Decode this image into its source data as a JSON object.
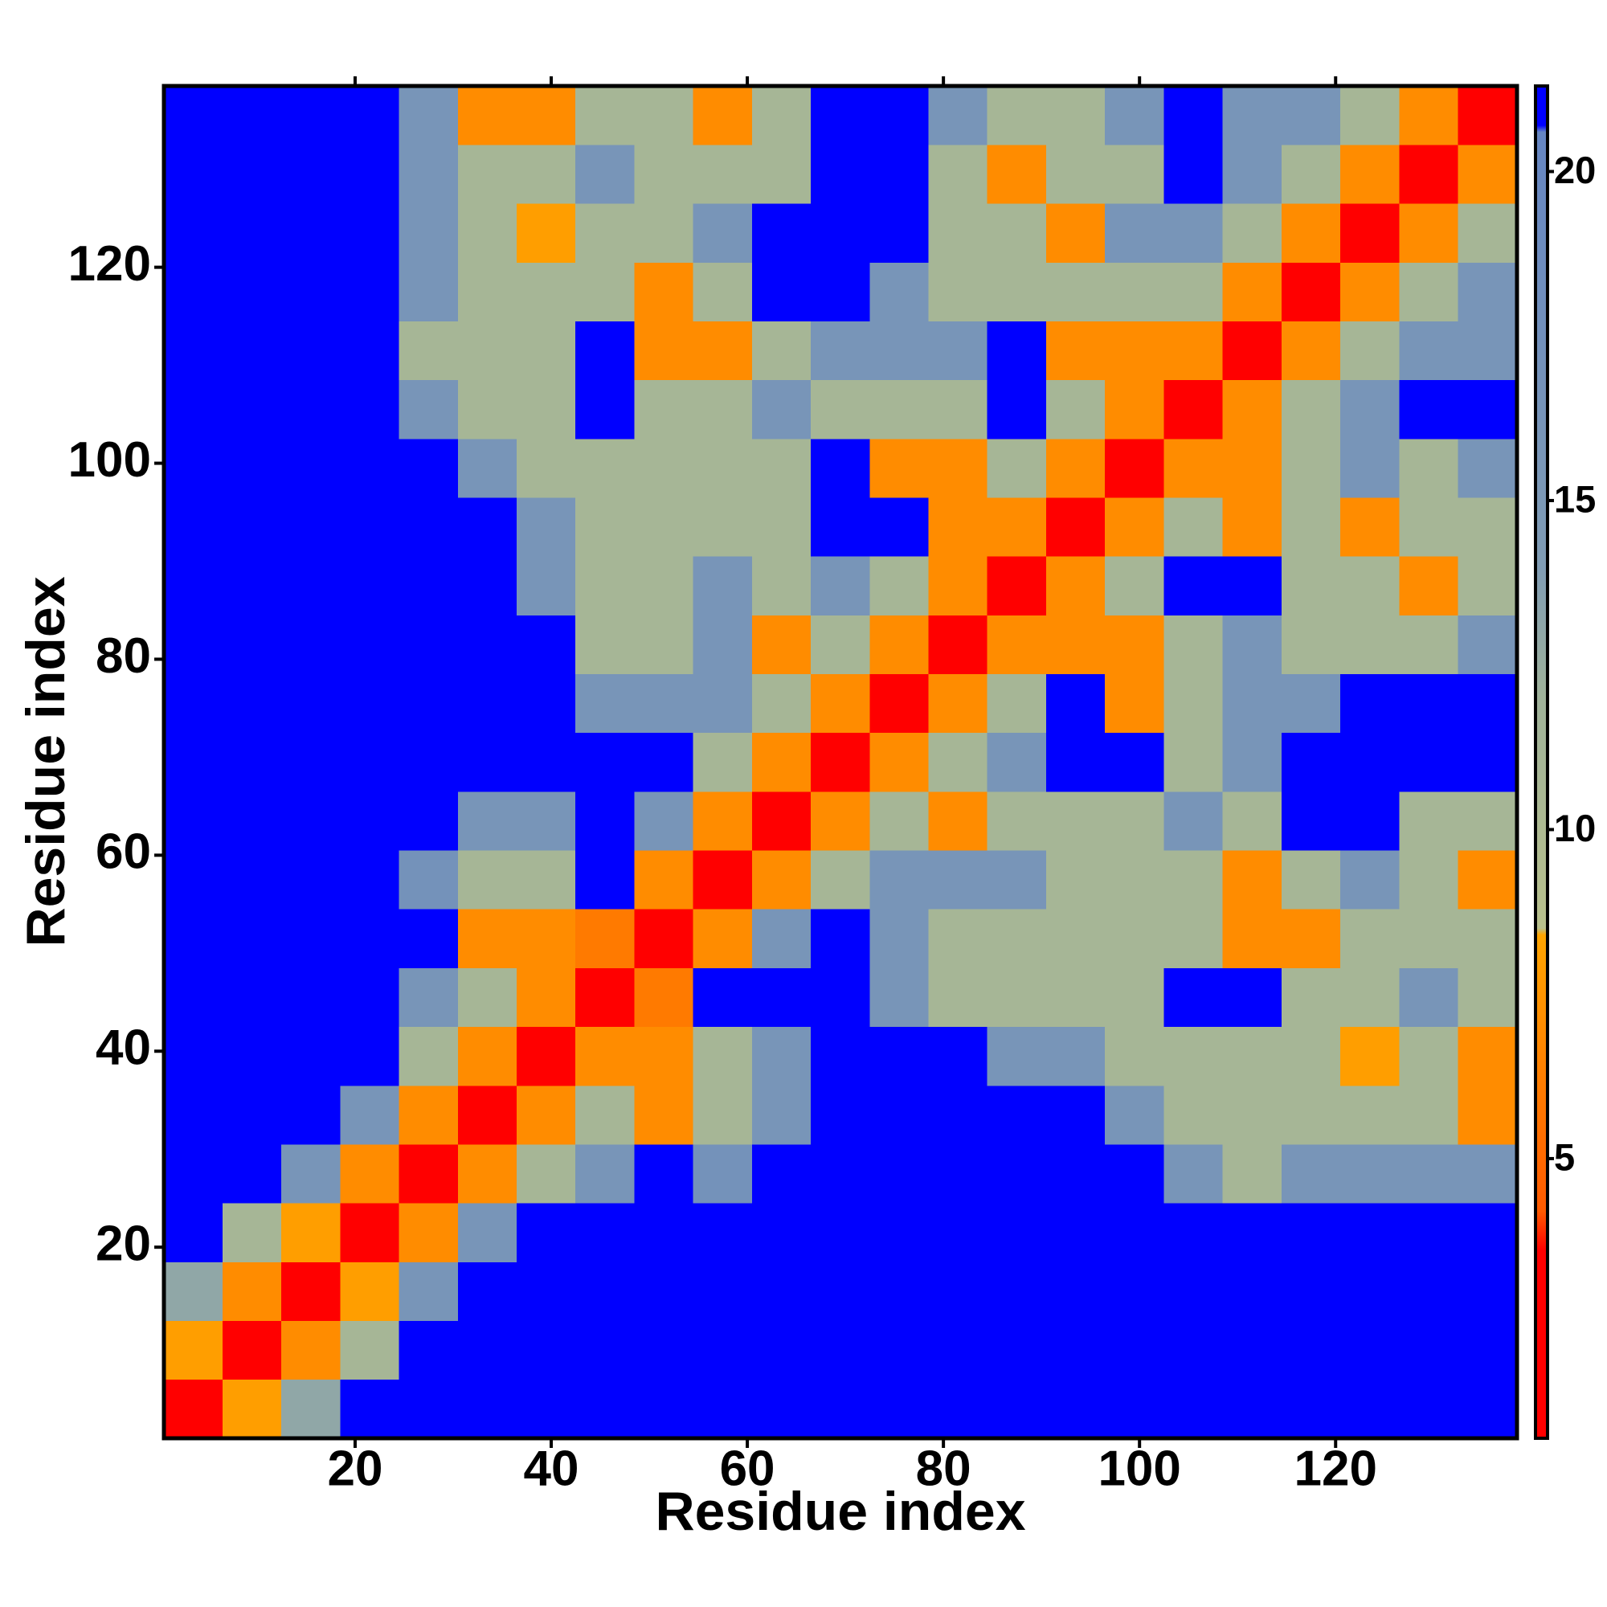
{
  "chart_data": {
    "type": "heatmap",
    "xlabel": "Residue index",
    "ylabel": "Residue index",
    "xlim": [
      0.5,
      138.5
    ],
    "ylim": [
      0.5,
      138.5
    ],
    "xticks": [
      20,
      40,
      60,
      80,
      100,
      120
    ],
    "yticks": [
      20,
      40,
      60,
      80,
      100,
      120
    ],
    "bins": [
      0.5,
      6.5,
      12.5,
      18.5,
      24.5,
      30.5,
      36.5,
      42.5,
      48.5,
      54.5,
      60.5,
      66.5,
      72.5,
      78.5,
      84.5,
      90.5,
      96.5,
      102.5,
      108.5,
      114.5,
      120.5,
      126.5,
      132.5,
      138.5
    ],
    "symmetric": true,
    "z": [
      [
        3,
        8,
        13,
        21,
        21,
        21,
        21,
        21,
        21,
        21,
        21,
        21,
        21,
        21,
        21,
        21,
        21,
        21,
        21,
        21,
        21,
        21,
        21
      ],
      [
        3,
        7,
        11,
        21,
        21,
        21,
        21,
        21,
        21,
        21,
        21,
        21,
        21,
        21,
        21,
        21,
        21,
        21,
        21,
        21,
        21,
        21
      ],
      [
        3,
        8,
        16,
        21,
        21,
        21,
        21,
        21,
        21,
        21,
        21,
        21,
        21,
        21,
        21,
        21,
        21,
        21,
        21,
        21,
        21
      ],
      [
        3,
        7,
        16,
        21,
        21,
        21,
        21,
        21,
        21,
        21,
        21,
        21,
        21,
        21,
        21,
        21,
        21,
        21,
        21,
        21
      ],
      [
        3,
        7,
        11,
        16,
        21,
        17,
        21,
        21,
        21,
        21,
        21,
        21,
        21,
        16,
        11,
        16,
        16,
        16,
        16
      ],
      [
        3,
        7,
        11,
        7,
        11,
        16,
        21,
        21,
        21,
        21,
        21,
        16,
        11,
        11,
        11,
        11,
        11,
        7
      ],
      [
        3,
        7,
        7,
        11,
        16,
        21,
        21,
        21,
        16,
        16,
        11,
        11,
        11,
        11,
        8,
        11,
        7
      ],
      [
        3,
        6,
        21,
        21,
        21,
        16,
        11,
        11,
        11,
        11,
        21,
        21,
        11,
        11,
        16,
        11
      ],
      [
        3,
        7,
        16,
        21,
        16,
        11,
        11,
        11,
        11,
        11,
        7,
        7,
        11,
        11,
        11
      ],
      [
        3,
        7,
        11,
        16,
        16,
        16,
        11,
        11,
        11,
        7,
        11,
        16,
        11,
        7
      ],
      [
        3,
        7,
        11,
        7,
        11,
        11,
        11,
        16,
        11,
        21,
        21,
        11,
        11
      ],
      [
        3,
        7,
        11,
        16,
        21,
        21,
        11,
        16,
        21,
        21,
        21,
        21
      ],
      [
        3,
        7,
        11,
        21,
        7,
        11,
        16,
        16,
        21,
        21,
        21
      ],
      [
        3,
        7,
        7,
        7,
        11,
        16,
        11,
        11,
        11,
        16
      ],
      [
        3,
        7,
        11,
        21,
        21,
        11,
        11,
        7,
        11
      ],
      [
        3,
        7,
        11,
        7,
        11,
        7,
        11,
        11
      ],
      [
        3,
        7,
        7,
        11,
        16,
        11,
        16
      ],
      [
        3,
        7,
        11,
        16,
        21,
        21
      ],
      [
        3,
        7,
        11,
        16,
        16
      ],
      [
        3,
        7,
        11,
        16
      ],
      [
        3,
        7,
        11
      ],
      [
        3,
        7
      ],
      [
        3
      ]
    ],
    "zlim": [
      0.75,
      21.3
    ],
    "zticks": [
      5,
      10,
      15,
      20
    ],
    "colorscale": [
      [
        0.75,
        "#ff0000"
      ],
      [
        3.6,
        "#ff0000"
      ],
      [
        4.2,
        "#ff5a00"
      ],
      [
        8.4,
        "#ffa500"
      ],
      [
        8.5,
        "#b8c08c"
      ],
      [
        12,
        "#9fb29a"
      ],
      [
        14,
        "#809cb4"
      ],
      [
        20.6,
        "#6686c2"
      ],
      [
        20.7,
        "#0000ff"
      ],
      [
        21.3,
        "#0000ff"
      ]
    ]
  }
}
